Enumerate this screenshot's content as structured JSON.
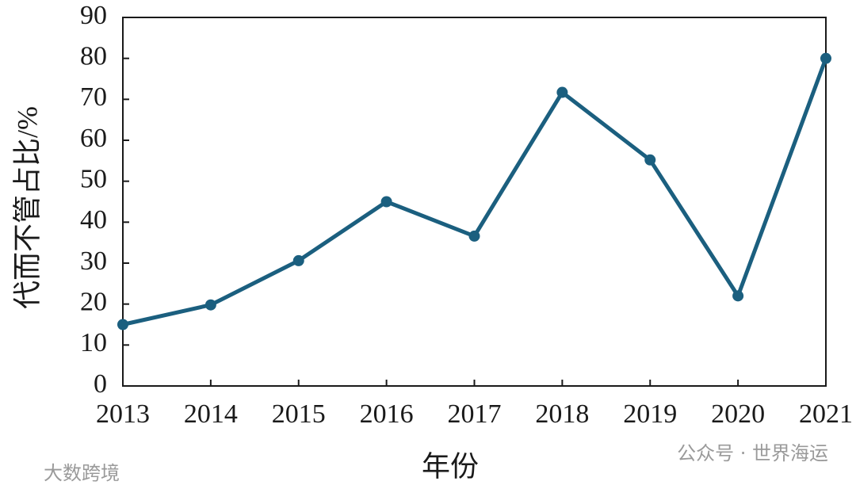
{
  "chart_data": {
    "type": "line",
    "x_label": "年份",
    "y_label": "代而不管占比/%",
    "x": [
      2013,
      2014,
      2015,
      2016,
      2017,
      2018,
      2019,
      2020,
      2021
    ],
    "series": [
      {
        "name": "代而不管占比",
        "color": "#1b5f7f",
        "values": [
          15,
          19.8,
          30.6,
          45,
          36.6,
          71.7,
          55.2,
          22,
          80
        ]
      }
    ],
    "xlim": [
      2013,
      2021
    ],
    "xticks": [
      2013,
      2014,
      2015,
      2016,
      2017,
      2018,
      2019,
      2020,
      2021
    ],
    "ylim": [
      0,
      90
    ],
    "yticks": [
      0,
      10,
      20,
      30,
      40,
      50,
      60,
      70,
      80,
      90
    ],
    "grid": false,
    "watermarks": [
      "公众号 · 世界海运",
      "大数跨境"
    ]
  }
}
